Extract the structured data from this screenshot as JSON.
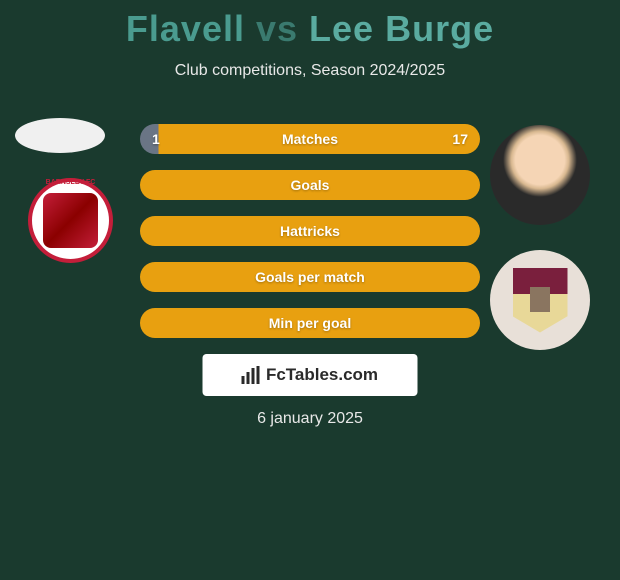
{
  "title": {
    "left": "Flavell",
    "vs": "vs",
    "right": "Lee Burge"
  },
  "subtitle": "Club competitions, Season 2024/2025",
  "stats": [
    {
      "label": "Matches",
      "left_value": "1",
      "right_value": "17",
      "split": true,
      "split_percent": 5.5
    },
    {
      "label": "Goals",
      "split": false
    },
    {
      "label": "Hattricks",
      "split": false
    },
    {
      "label": "Goals per match",
      "split": false
    },
    {
      "label": "Min per goal",
      "split": false
    }
  ],
  "colors": {
    "background": "#1a3a2e",
    "bar_left": "#6a7585",
    "bar_right": "#e8a010",
    "title_left": "#4a9b8f",
    "title_right": "#5aaba0",
    "badge_left_border": "#c41e3a",
    "badge_right_bg": "#e8e0d8"
  },
  "watermark": "FcTables.com",
  "date": "6 january 2025",
  "badge_left_label": "BARNSLEY FC"
}
